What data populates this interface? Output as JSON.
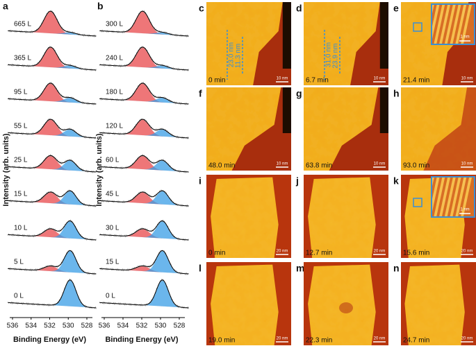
{
  "panels": [
    {
      "label": "a",
      "doses": [
        "665 L",
        "365 L",
        "95 L",
        "55 L",
        "25 L",
        "15 L",
        "10 L",
        "5 L",
        "0 L"
      ],
      "xticks": [
        536,
        534,
        532,
        530,
        528
      ],
      "xlabel": "Binding Energy (eV)",
      "ylabel": "Intensity (arb. units)"
    },
    {
      "label": "b",
      "doses": [
        "300 L",
        "240 L",
        "180 L",
        "120 L",
        "60 L",
        "45 L",
        "30 L",
        "15 L",
        "0 L"
      ],
      "xticks": [
        536,
        534,
        532,
        530,
        528
      ],
      "xlabel": "Binding Energy (eV)",
      "ylabel": "Intensity (arb. units)"
    }
  ],
  "images": [
    {
      "label": "c",
      "time": "0 min",
      "scale": "10 nm",
      "dims": [
        "23.0 nm",
        "11.3 nm"
      ]
    },
    {
      "label": "d",
      "time": "6.7 min",
      "scale": "10 nm",
      "dims": [
        "31.0 nm",
        "23.9 nm"
      ]
    },
    {
      "label": "e",
      "time": "21.4 min",
      "scale": "10 nm",
      "inset_scale": "1 nm"
    },
    {
      "label": "f",
      "time": "48.0 min",
      "scale": "10 nm"
    },
    {
      "label": "g",
      "time": "63.8 min",
      "scale": "10 nm"
    },
    {
      "label": "h",
      "time": "93.0 min",
      "scale": "10 nm"
    },
    {
      "label": "i",
      "time": "0 min",
      "scale": "20 nm"
    },
    {
      "label": "j",
      "time": "12.7 min",
      "scale": "20 nm"
    },
    {
      "label": "k",
      "time": "15.6 min",
      "scale": "20 nm",
      "inset_scale": "1 nm"
    },
    {
      "label": "l",
      "time": "19.0 min",
      "scale": "20 nm"
    },
    {
      "label": "m",
      "time": "22.3 min",
      "scale": "20 nm"
    },
    {
      "label": "n",
      "time": "24.7 min",
      "scale": "20 nm"
    }
  ]
}
